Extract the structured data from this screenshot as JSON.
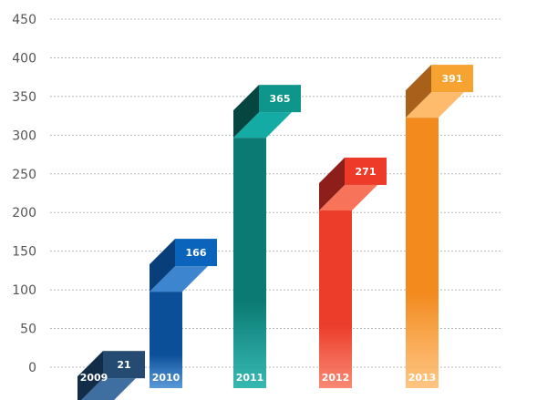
{
  "chart_data": {
    "type": "bar",
    "categories": [
      "2009",
      "2010",
      "2011",
      "2012",
      "2013"
    ],
    "values": [
      21,
      166,
      365,
      271,
      391
    ],
    "ylim": [
      0,
      450
    ],
    "yticks": [
      0,
      50,
      100,
      150,
      200,
      250,
      300,
      350,
      400,
      450
    ],
    "grid": true,
    "title": "",
    "xlabel": "",
    "ylabel": "",
    "colors": [
      {
        "front": "#1a3f66",
        "top": "#3f6ea0",
        "tip": "#264b72",
        "tipSide": "#132c47"
      },
      {
        "front": "#0b4f99",
        "top": "#3d86cf",
        "tip": "#0a64bb",
        "tipSide": "#083e7a"
      },
      {
        "front": "#0a7a72",
        "top": "#13aba3",
        "tip": "#0e958c",
        "tipSide": "#064640"
      },
      {
        "front": "#ec3d2b",
        "top": "#f7735a",
        "tip": "#ee3b29",
        "tipSide": "#8e1e1a"
      },
      {
        "front": "#f28a1e",
        "top": "#ffbb6c",
        "tip": "#f7a332",
        "tipSide": "#a9601b"
      }
    ]
  }
}
